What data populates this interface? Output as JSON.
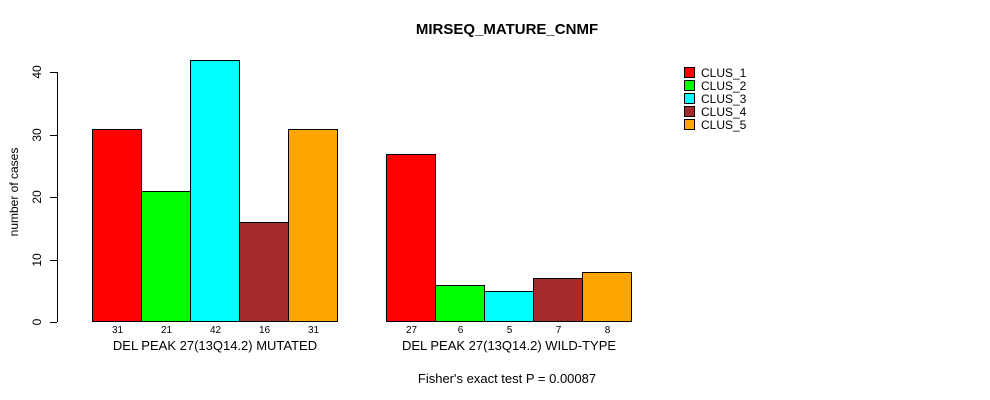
{
  "chart_data": {
    "type": "bar",
    "title": "MIRSEQ_MATURE_CNMF",
    "ylabel": "number of cases",
    "xlabel": "",
    "ylim": [
      0,
      42
    ],
    "yticks": [
      0,
      10,
      20,
      30,
      40
    ],
    "grid": false,
    "legend_position": "right",
    "bar_value_labels": true,
    "categories": [
      "DEL PEAK 27(13Q14.2) MUTATED",
      "DEL PEAK 27(13Q14.2) WILD-TYPE"
    ],
    "series": [
      {
        "name": "CLUS_1",
        "color": "#FF0000",
        "values": [
          31,
          27
        ]
      },
      {
        "name": "CLUS_2",
        "color": "#00FF00",
        "values": [
          21,
          6
        ]
      },
      {
        "name": "CLUS_3",
        "color": "#00FFFF",
        "values": [
          42,
          5
        ]
      },
      {
        "name": "CLUS_4",
        "color": "#A52A2A",
        "values": [
          16,
          7
        ]
      },
      {
        "name": "CLUS_5",
        "color": "#FFA500",
        "values": [
          31,
          8
        ]
      }
    ],
    "footnote": "Fisher's exact test P = 0.00087"
  }
}
